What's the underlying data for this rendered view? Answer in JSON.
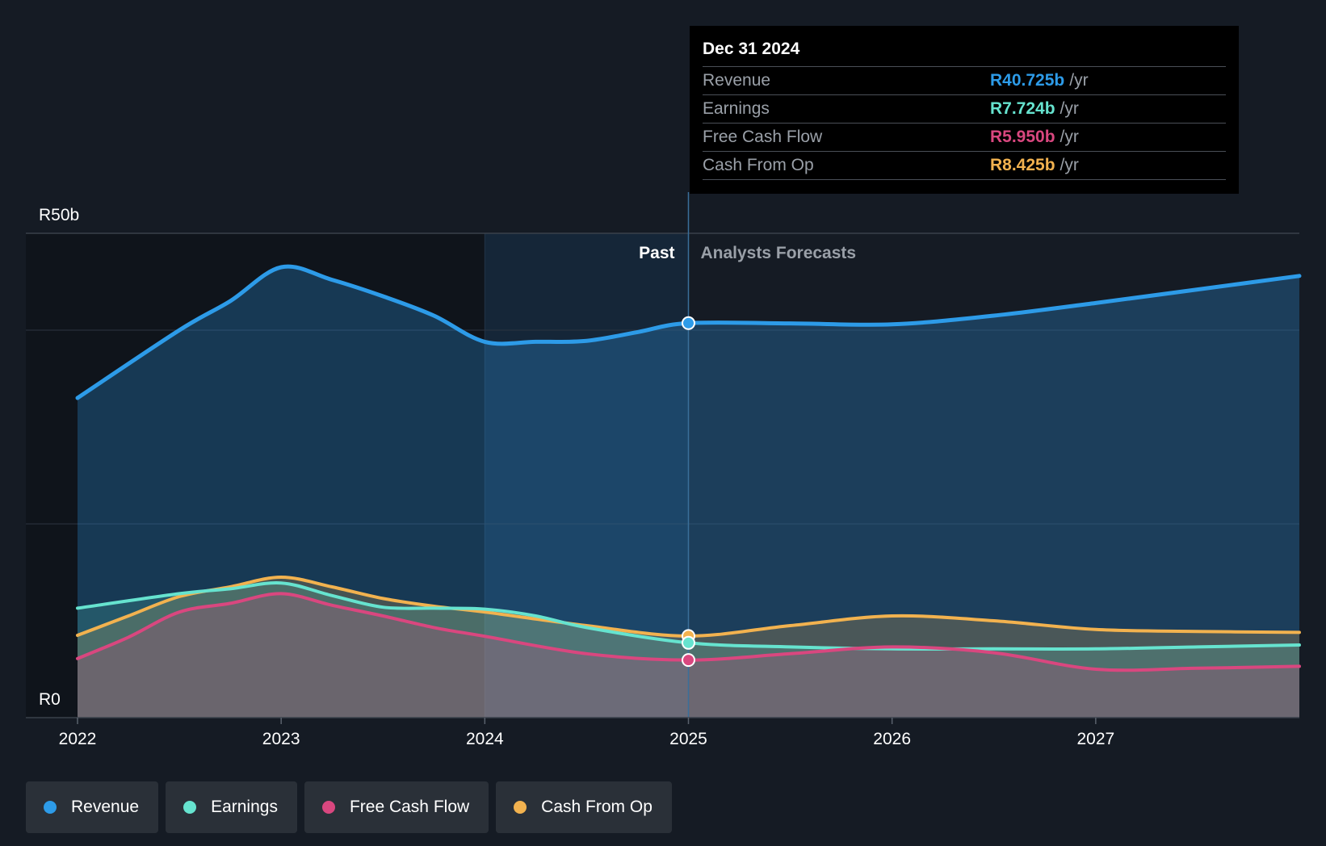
{
  "tooltip": {
    "date": "Dec 31 2024",
    "unit": "/yr",
    "rows": [
      {
        "label": "Revenue",
        "value": "R40.725b",
        "color": "#2d9be8"
      },
      {
        "label": "Earnings",
        "value": "R7.724b",
        "color": "#66e3cf"
      },
      {
        "label": "Free Cash Flow",
        "value": "R5.950b",
        "color": "#d9477f"
      },
      {
        "label": "Cash From Op",
        "value": "R8.425b",
        "color": "#f2b24f"
      }
    ]
  },
  "sections": {
    "past_label": "Past",
    "forecast_label": "Analysts Forecasts"
  },
  "legend": [
    {
      "label": "Revenue",
      "color": "#2d9be8"
    },
    {
      "label": "Earnings",
      "color": "#66e3cf"
    },
    {
      "label": "Free Cash Flow",
      "color": "#d9477f"
    },
    {
      "label": "Cash From Op",
      "color": "#f2b24f"
    }
  ],
  "chart_data": {
    "type": "area",
    "title": "",
    "xlabel": "",
    "ylabel": "",
    "currency_prefix": "R",
    "ylim": [
      0,
      50
    ],
    "xlim": [
      2022,
      2028
    ],
    "y_tick_labels": [
      {
        "value": 50,
        "label": "R50b"
      },
      {
        "value": 0,
        "label": "R0"
      }
    ],
    "gridlines": [
      20,
      40
    ],
    "x_ticks": [
      {
        "value": 2022,
        "label": "2022"
      },
      {
        "value": 2023,
        "label": "2023"
      },
      {
        "value": 2024,
        "label": "2024"
      },
      {
        "value": 2025,
        "label": "2025"
      },
      {
        "value": 2026,
        "label": "2026"
      },
      {
        "value": 2027,
        "label": "2027"
      }
    ],
    "highlight_range": [
      2024,
      2025
    ],
    "past_end": 2025,
    "marker_x": 2025,
    "series": [
      {
        "name": "Revenue",
        "color": "#2d9be8",
        "fill_opacity": 0.28,
        "line_width": 5,
        "points": [
          [
            2022,
            33.0
          ],
          [
            2022.5,
            40.0
          ],
          [
            2022.75,
            43.0
          ],
          [
            2023,
            46.5
          ],
          [
            2023.25,
            45.2
          ],
          [
            2023.5,
            43.5
          ],
          [
            2023.75,
            41.5
          ],
          [
            2024,
            38.8
          ],
          [
            2024.25,
            38.8
          ],
          [
            2024.5,
            38.9
          ],
          [
            2024.75,
            39.8
          ],
          [
            2025,
            40.725
          ],
          [
            2025.5,
            40.7
          ],
          [
            2026,
            40.6
          ],
          [
            2026.5,
            41.5
          ],
          [
            2027,
            42.8
          ],
          [
            2027.5,
            44.2
          ],
          [
            2028,
            45.6
          ]
        ]
      },
      {
        "name": "Cash From Op",
        "color": "#f2b24f",
        "fill_opacity": 0.22,
        "line_width": 4,
        "points": [
          [
            2022,
            8.5
          ],
          [
            2022.25,
            10.5
          ],
          [
            2022.5,
            12.5
          ],
          [
            2022.75,
            13.5
          ],
          [
            2023,
            14.5
          ],
          [
            2023.25,
            13.5
          ],
          [
            2023.5,
            12.3
          ],
          [
            2023.75,
            11.5
          ],
          [
            2024,
            10.9
          ],
          [
            2024.5,
            9.5
          ],
          [
            2025,
            8.425
          ],
          [
            2025.5,
            9.5
          ],
          [
            2026,
            10.5
          ],
          [
            2026.5,
            10.0
          ],
          [
            2027,
            9.1
          ],
          [
            2027.5,
            8.9
          ],
          [
            2028,
            8.8
          ]
        ]
      },
      {
        "name": "Earnings",
        "color": "#66e3cf",
        "fill_opacity": 0.18,
        "line_width": 4,
        "points": [
          [
            2022,
            11.3
          ],
          [
            2022.5,
            12.8
          ],
          [
            2022.75,
            13.3
          ],
          [
            2023,
            13.9
          ],
          [
            2023.25,
            12.6
          ],
          [
            2023.5,
            11.4
          ],
          [
            2023.75,
            11.3
          ],
          [
            2024,
            11.2
          ],
          [
            2024.25,
            10.5
          ],
          [
            2024.5,
            9.3
          ],
          [
            2025,
            7.724
          ],
          [
            2025.5,
            7.3
          ],
          [
            2026,
            7.1
          ],
          [
            2026.5,
            7.1
          ],
          [
            2027,
            7.1
          ],
          [
            2027.5,
            7.3
          ],
          [
            2028,
            7.5
          ]
        ]
      },
      {
        "name": "Free Cash Flow",
        "color": "#d9477f",
        "fill_opacity": 0.22,
        "line_width": 4,
        "points": [
          [
            2022,
            6.1
          ],
          [
            2022.25,
            8.3
          ],
          [
            2022.5,
            10.9
          ],
          [
            2022.75,
            11.8
          ],
          [
            2023,
            12.8
          ],
          [
            2023.25,
            11.6
          ],
          [
            2023.5,
            10.5
          ],
          [
            2023.75,
            9.3
          ],
          [
            2024,
            8.4
          ],
          [
            2024.5,
            6.6
          ],
          [
            2025,
            5.95
          ],
          [
            2025.5,
            6.6
          ],
          [
            2026,
            7.3
          ],
          [
            2026.5,
            6.7
          ],
          [
            2027,
            5.0
          ],
          [
            2027.5,
            5.1
          ],
          [
            2028,
            5.3
          ]
        ]
      }
    ]
  }
}
